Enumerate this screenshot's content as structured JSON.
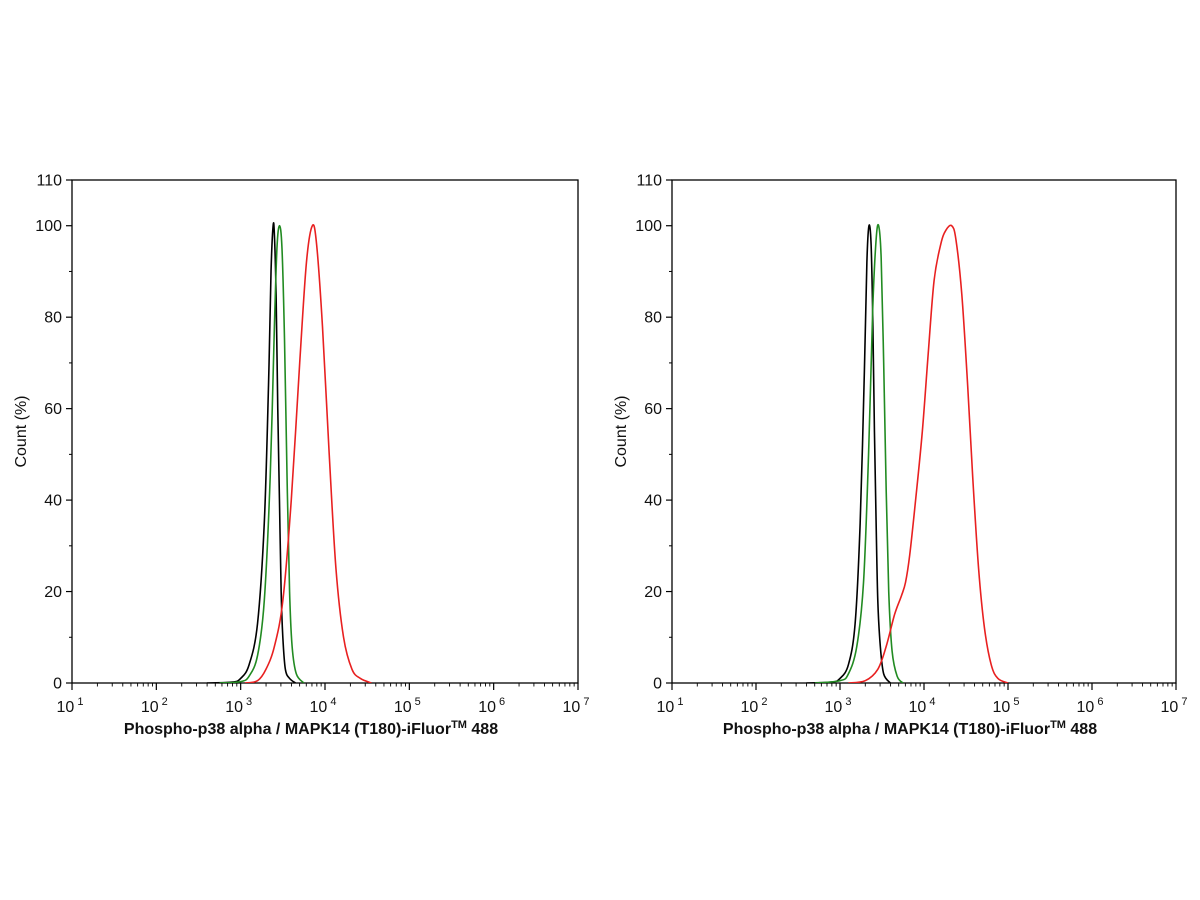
{
  "chart_data": [
    {
      "type": "line",
      "title": "",
      "x_scale": "log",
      "xlim": [
        10,
        10000000
      ],
      "ylim": [
        0,
        110
      ],
      "xlabel": {
        "main": "Phospho-p38 alpha / MAPK14 (T180)-iFluor",
        "tm": "TM",
        "suffix": " 488"
      },
      "ylabel": "Count  (%)",
      "x_ticks": [
        {
          "base": "10",
          "exp": "1",
          "value": 10
        },
        {
          "base": "10",
          "exp": "2",
          "value": 100
        },
        {
          "base": "10",
          "exp": "3",
          "value": 1000
        },
        {
          "base": "10",
          "exp": "4",
          "value": 10000
        },
        {
          "base": "10",
          "exp": "5",
          "value": 100000
        },
        {
          "base": "10",
          "exp": "6",
          "value": 1000000
        },
        {
          "base": "10",
          "exp": "7",
          "value": 10000000
        }
      ],
      "y_ticks": [
        {
          "label": "0",
          "value": 0
        },
        {
          "label": "20",
          "value": 20
        },
        {
          "label": "40",
          "value": 40
        },
        {
          "label": "60",
          "value": 60
        },
        {
          "label": "80",
          "value": 80
        },
        {
          "label": "100",
          "value": 100
        },
        {
          "label": "110",
          "value": 110
        }
      ],
      "series": [
        {
          "name": "black",
          "color": "#000000",
          "points": [
            [
              2.6,
              0
            ],
            [
              2.9,
              0.2
            ],
            [
              3.0,
              1.0
            ],
            [
              3.1,
              4.0
            ],
            [
              3.2,
              13.0
            ],
            [
              3.28,
              35.0
            ],
            [
              3.33,
              65.0
            ],
            [
              3.36,
              90.0
            ],
            [
              3.385,
              100.0
            ],
            [
              3.4,
              98.0
            ],
            [
              3.42,
              85.0
            ],
            [
              3.44,
              60.0
            ],
            [
              3.46,
              40.0
            ],
            [
              3.48,
              20.0
            ],
            [
              3.5,
              10.0
            ],
            [
              3.53,
              3.0
            ],
            [
              3.58,
              1.0
            ],
            [
              3.65,
              0
            ]
          ]
        },
        {
          "name": "green",
          "color": "#228B22",
          "points": [
            [
              2.75,
              0
            ],
            [
              3.0,
              0.3
            ],
            [
              3.1,
              1.5
            ],
            [
              3.2,
              6.0
            ],
            [
              3.28,
              18.0
            ],
            [
              3.35,
              45.0
            ],
            [
              3.4,
              78.0
            ],
            [
              3.43,
              95.0
            ],
            [
              3.46,
              100.0
            ],
            [
              3.49,
              95.0
            ],
            [
              3.52,
              75.0
            ],
            [
              3.55,
              45.0
            ],
            [
              3.58,
              20.0
            ],
            [
              3.61,
              8.0
            ],
            [
              3.66,
              2.0
            ],
            [
              3.75,
              0
            ]
          ]
        },
        {
          "name": "red",
          "color": "#E82020",
          "points": [
            [
              3.05,
              0
            ],
            [
              3.2,
              0.5
            ],
            [
              3.3,
              3.0
            ],
            [
              3.4,
              8.0
            ],
            [
              3.5,
              18.0
            ],
            [
              3.6,
              40.0
            ],
            [
              3.7,
              70.0
            ],
            [
              3.78,
              92.0
            ],
            [
              3.85,
              100.0
            ],
            [
              3.9,
              96.0
            ],
            [
              3.97,
              78.0
            ],
            [
              4.05,
              50.0
            ],
            [
              4.13,
              25.0
            ],
            [
              4.22,
              10.0
            ],
            [
              4.32,
              3.0
            ],
            [
              4.42,
              1.0
            ],
            [
              4.55,
              0
            ]
          ]
        }
      ]
    },
    {
      "type": "line",
      "title": "",
      "x_scale": "log",
      "xlim": [
        10,
        10000000
      ],
      "ylim": [
        0,
        110
      ],
      "xlabel": {
        "main": "Phospho-p38 alpha / MAPK14 (T180)-iFluor",
        "tm": "TM",
        "suffix": " 488"
      },
      "ylabel": "Count  (%)",
      "x_ticks": [
        {
          "base": "10",
          "exp": "1",
          "value": 10
        },
        {
          "base": "10",
          "exp": "2",
          "value": 100
        },
        {
          "base": "10",
          "exp": "3",
          "value": 1000
        },
        {
          "base": "10",
          "exp": "4",
          "value": 10000
        },
        {
          "base": "10",
          "exp": "5",
          "value": 100000
        },
        {
          "base": "10",
          "exp": "6",
          "value": 1000000
        },
        {
          "base": "10",
          "exp": "7",
          "value": 10000000
        }
      ],
      "y_ticks": [
        {
          "label": "0",
          "value": 0
        },
        {
          "label": "20",
          "value": 20
        },
        {
          "label": "40",
          "value": 40
        },
        {
          "label": "60",
          "value": 60
        },
        {
          "label": "80",
          "value": 80
        },
        {
          "label": "100",
          "value": 100
        },
        {
          "label": "110",
          "value": 110
        }
      ],
      "series": [
        {
          "name": "black",
          "color": "#000000",
          "points": [
            [
              2.6,
              0
            ],
            [
              2.9,
              0.2
            ],
            [
              3.0,
              1.0
            ],
            [
              3.1,
              4.0
            ],
            [
              3.18,
              13.0
            ],
            [
              3.24,
              35.0
            ],
            [
              3.29,
              68.0
            ],
            [
              3.32,
              92.0
            ],
            [
              3.345,
              100.0
            ],
            [
              3.37,
              96.0
            ],
            [
              3.39,
              80.0
            ],
            [
              3.41,
              55.0
            ],
            [
              3.43,
              35.0
            ],
            [
              3.45,
              18.0
            ],
            [
              3.48,
              8.0
            ],
            [
              3.52,
              2.0
            ],
            [
              3.6,
              0
            ]
          ]
        },
        {
          "name": "green",
          "color": "#228B22",
          "points": [
            [
              2.7,
              0
            ],
            [
              3.0,
              0.5
            ],
            [
              3.1,
              2.0
            ],
            [
              3.2,
              8.0
            ],
            [
              3.28,
              22.0
            ],
            [
              3.34,
              50.0
            ],
            [
              3.39,
              82.0
            ],
            [
              3.43,
              97.0
            ],
            [
              3.46,
              100.0
            ],
            [
              3.49,
              93.0
            ],
            [
              3.52,
              70.0
            ],
            [
              3.55,
              42.0
            ],
            [
              3.58,
              20.0
            ],
            [
              3.62,
              7.0
            ],
            [
              3.68,
              1.5
            ],
            [
              3.75,
              0
            ]
          ]
        },
        {
          "name": "red",
          "color": "#E82020",
          "points": [
            [
              3.1,
              0
            ],
            [
              3.3,
              0.5
            ],
            [
              3.45,
              3.0
            ],
            [
              3.55,
              8.0
            ],
            [
              3.65,
              15.0
            ],
            [
              3.73,
              19.0
            ],
            [
              3.78,
              22.0
            ],
            [
              3.83,
              28.0
            ],
            [
              3.9,
              40.0
            ],
            [
              3.98,
              55.0
            ],
            [
              4.05,
              72.0
            ],
            [
              4.12,
              88.0
            ],
            [
              4.2,
              96.0
            ],
            [
              4.26,
              99.0
            ],
            [
              4.33,
              100.0
            ],
            [
              4.38,
              97.0
            ],
            [
              4.45,
              85.0
            ],
            [
              4.52,
              65.0
            ],
            [
              4.58,
              45.0
            ],
            [
              4.65,
              25.0
            ],
            [
              4.72,
              12.0
            ],
            [
              4.8,
              4.0
            ],
            [
              4.88,
              1.0
            ],
            [
              5.0,
              0
            ]
          ]
        }
      ]
    }
  ]
}
